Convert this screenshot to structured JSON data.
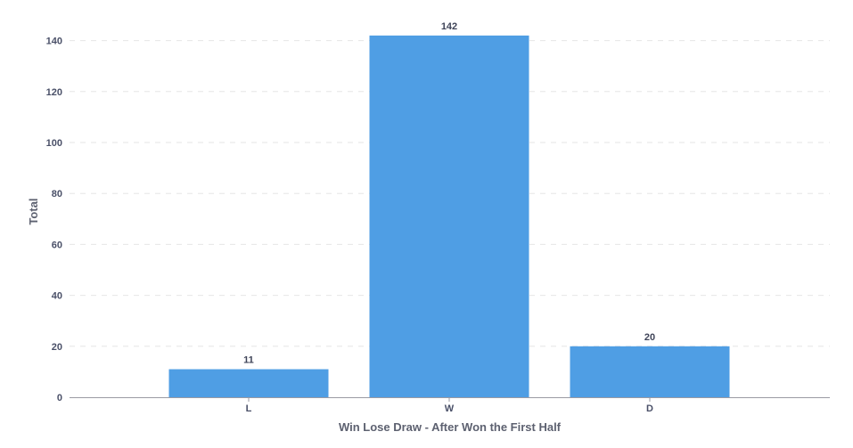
{
  "chart_data": {
    "type": "bar",
    "categories": [
      "L",
      "W",
      "D"
    ],
    "values": [
      11,
      142,
      20
    ],
    "xlabel": "Win Lose Draw - After Won the First Half",
    "ylabel": "Total",
    "ylim": [
      0,
      150
    ],
    "yticks": [
      0,
      20,
      40,
      60,
      80,
      100,
      120,
      140
    ],
    "grid": true,
    "data_labels": true,
    "bar_color": "#4f9ee4"
  }
}
